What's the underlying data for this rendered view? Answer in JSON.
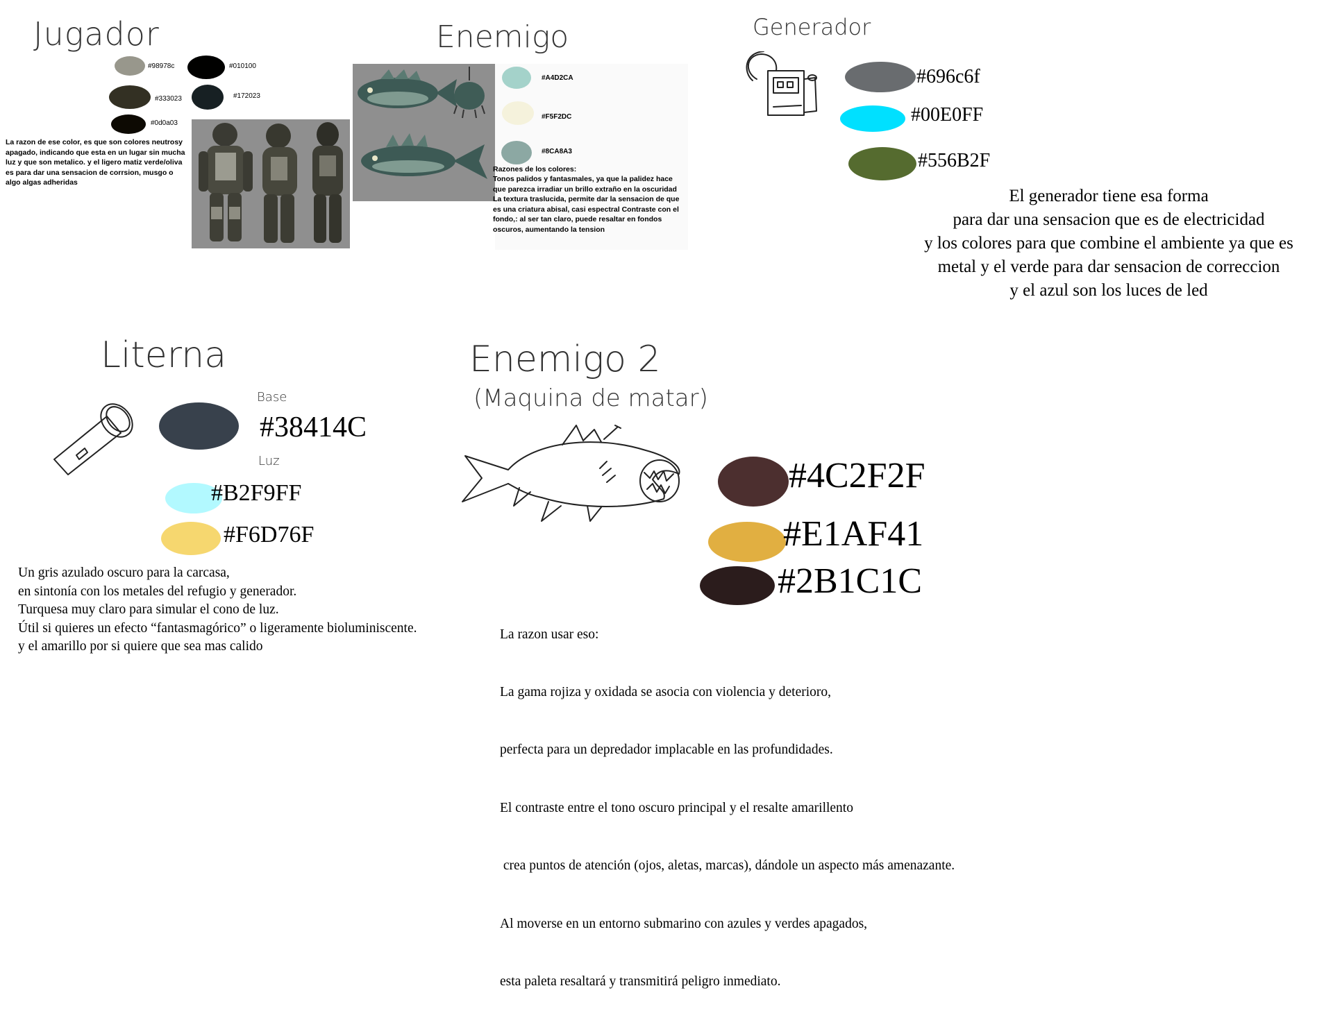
{
  "jugador": {
    "title": "Jugador",
    "colors": [
      {
        "hex": "#98978c",
        "label": "#98978c"
      },
      {
        "hex": "#010100",
        "label": "#010100"
      },
      {
        "hex": "#333023",
        "label": "#333023"
      },
      {
        "hex": "#172023",
        "label": "#172023"
      },
      {
        "hex": "#0d0a03",
        "label": "#0d0a03"
      }
    ],
    "description": "La razon de ese color, es que son colores neutrosy apagado, indicando que esta en un lugar sin mucha luz y que son metalico. y el ligero matiz verde/oliva es para dar una sensacion de corrsion, musgo o algo algas adheridas"
  },
  "enemigo": {
    "title": "Enemigo",
    "colors": [
      {
        "hex": "#A4D2CA",
        "label": "#A4D2CA"
      },
      {
        "hex": "#F5F2DC",
        "label": "#F5F2DC"
      },
      {
        "hex": "#8CA8A3",
        "label": "#8CA8A3"
      }
    ],
    "reasons_title": "Razones de los colores:",
    "reasons": "Tonos palidos y fantasmales, ya que la palidez hace que parezca irradiar un brillo extraño en la oscuridad La textura traslucida, permite dar la sensacion de que es una criatura abisal, casi espectral Contraste con el fondo,: al ser tan claro, puede resaltar en fondos oscuros, aumentando la tension"
  },
  "generador": {
    "title": "Generador",
    "colors": [
      {
        "hex": "#696c6f",
        "label": "#696c6f"
      },
      {
        "hex": "#00E0FF",
        "label": "#00E0FF"
      },
      {
        "hex": "#556B2F",
        "label": "#556B2F"
      }
    ],
    "description_lines": [
      "El generador tiene esa forma",
      "para dar una sensacion que es de electricidad",
      "y los colores para que combine el ambiente ya que es",
      "metal y el verde para dar sensacion de correccion",
      "y el azul son los luces de led"
    ]
  },
  "linterna": {
    "title": "Literna",
    "base_label": "Base",
    "luz_label": "Luz",
    "colors": [
      {
        "hex": "#38414C",
        "label": "#38414C"
      },
      {
        "hex": "#B2F9FF",
        "label": "#B2F9FF"
      },
      {
        "hex": "#F6D76F",
        "label": "#F6D76F"
      }
    ],
    "description_lines": [
      "Un gris azulado oscuro para la carcasa,",
      "en sintonía con los metales del refugio y generador.",
      "Turquesa muy claro para simular el cono de luz.",
      "Útil si quieres un efecto “fantasmagórico” o ligeramente bioluminiscente.",
      "y el amarillo por si quiere que sea mas calido"
    ]
  },
  "enemigo2": {
    "title": "Enemigo 2",
    "subtitle": "(Maquina de matar)",
    "colors": [
      {
        "hex": "#4C2F2F",
        "label": "#4C2F2F"
      },
      {
        "hex": "#E1AF41",
        "label": "#E1AF41"
      },
      {
        "hex": "#2B1C1C",
        "label": "#2B1C1C"
      }
    ],
    "description_lines": [
      "La razon usar eso:",
      "La gama rojiza y oxidada se asocia con violencia y deterioro,",
      "perfecta para un depredador implacable en las profundidades.",
      "El contraste entre el tono oscuro principal y el resalte amarillento",
      " crea puntos de atención (ojos, aletas, marcas), dándole un aspecto más amenazante.",
      "Al moverse en un entorno submarino con azules y verdes apagados,",
      "esta paleta resaltará y transmitirá peligro inmediato."
    ]
  }
}
